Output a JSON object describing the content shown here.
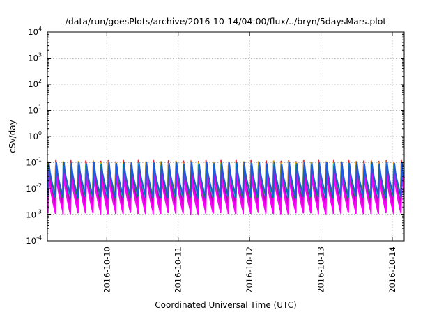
{
  "chart_data": {
    "type": "line",
    "title": "/data/run/goesPlots/archive/2016-10-14/04:00/flux/../bryn/5daysMars.plot",
    "xlabel": "Coordinated Universal Time (UTC)",
    "ylabel": "cSv/day",
    "y_scale": "log",
    "ylim": [
      0.0001,
      10000
    ],
    "y_ticks": [
      {
        "base": "10",
        "exp": "-4"
      },
      {
        "base": "10",
        "exp": "-3"
      },
      {
        "base": "10",
        "exp": "-2"
      },
      {
        "base": "10",
        "exp": "-1"
      },
      {
        "base": "10",
        "exp": "0"
      },
      {
        "base": "10",
        "exp": "1"
      },
      {
        "base": "10",
        "exp": "2"
      },
      {
        "base": "10",
        "exp": "3"
      },
      {
        "base": "10",
        "exp": "4"
      }
    ],
    "xlim": [
      "2016-10-09T04:00",
      "2016-10-14T04:00"
    ],
    "x_ticks": [
      "2016-10-10",
      "2016-10-11",
      "2016-10-12",
      "2016-10-13",
      "2016-10-14"
    ],
    "grid": true,
    "legend": "none",
    "pattern": {
      "description_of_values": "repeating sawtooth: sharp rise then decay, about 9.5 cycles per day",
      "cycles_per_day": 9.5
    },
    "series": [
      {
        "color": "#e8212d",
        "peak": 0.12,
        "trough": 0.004
      },
      {
        "color": "#d5b400",
        "peak": 0.11,
        "trough": 0.0045
      },
      {
        "color": "#ff00ff",
        "peak": 0.04,
        "trough": 0.0012
      },
      {
        "color": "#d800d8",
        "peak": 0.05,
        "trough": 0.0018
      },
      {
        "color": "#b000b0",
        "peak": 0.06,
        "trough": 0.0025
      },
      {
        "color": "#1f8f2f",
        "peak": 0.08,
        "trough": 0.003
      },
      {
        "color": "#00d0d0",
        "peak": 0.09,
        "trough": 0.004
      },
      {
        "color": "#1c5adc",
        "peak": 0.105,
        "trough": 0.005
      }
    ]
  }
}
